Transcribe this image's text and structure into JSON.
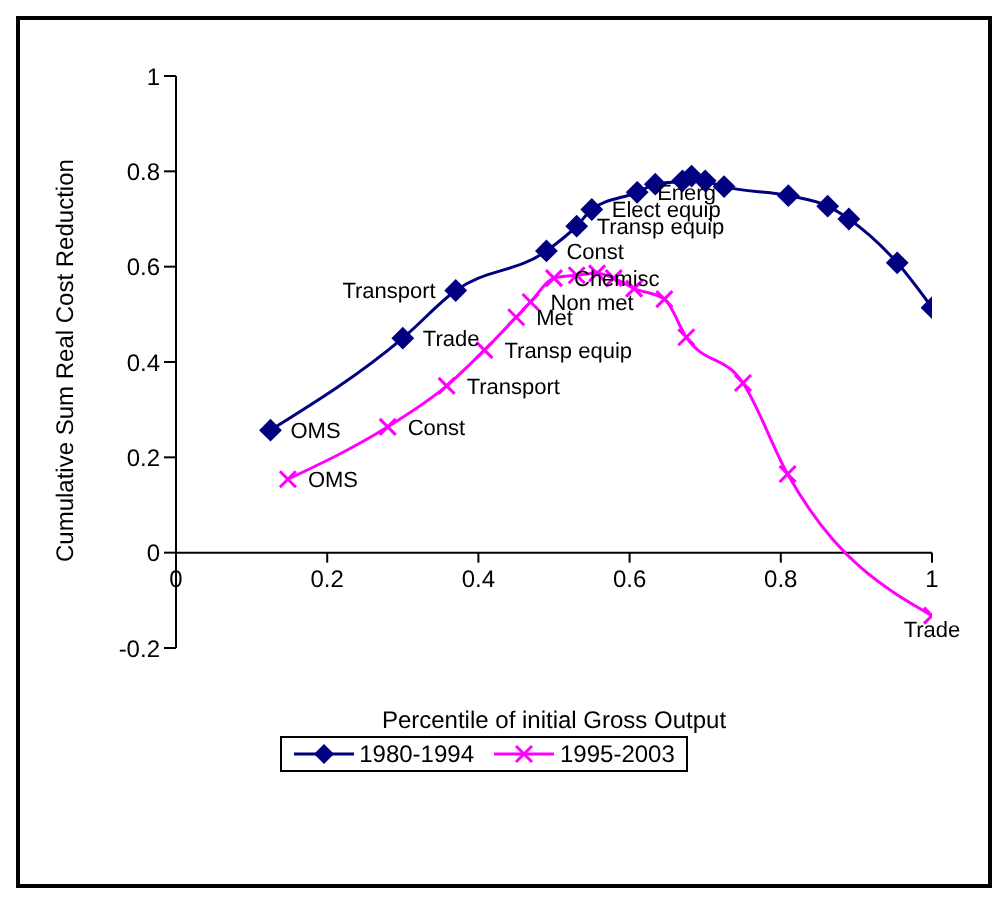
{
  "chart_data": {
    "type": "line",
    "xlabel": "Percentile of initial Gross Output",
    "ylabel": "Cumulative Sum Real Cost Reduction",
    "xlim": [
      0,
      1
    ],
    "xticks": [
      0,
      0.2,
      0.4,
      0.6,
      0.8,
      1
    ],
    "ylim": [
      -0.2,
      1
    ],
    "yticks": [
      -0.2,
      0,
      0.2,
      0.4,
      0.6,
      0.8,
      1
    ],
    "grid": false,
    "legend": "bottom",
    "series": [
      {
        "name": "1980-1994",
        "color": "#000080",
        "marker": "diamond",
        "x": [
          0.125,
          0.3,
          0.37,
          0.49,
          0.53,
          0.55,
          0.61,
          0.634,
          0.67,
          0.682,
          0.7,
          0.725,
          0.81,
          0.862,
          0.89,
          0.954,
          1.0
        ],
        "values": [
          0.257,
          0.45,
          0.55,
          0.633,
          0.685,
          0.72,
          0.756,
          0.773,
          0.78,
          0.79,
          0.78,
          0.768,
          0.749,
          0.727,
          0.7,
          0.608,
          0.514
        ]
      },
      {
        "name": "1995-2003",
        "color": "#ff00ff",
        "marker": "cross",
        "x": [
          0.148,
          0.28,
          0.358,
          0.408,
          0.45,
          0.469,
          0.5,
          0.53,
          0.557,
          0.579,
          0.606,
          0.646,
          0.675,
          0.75,
          0.809,
          1.0
        ],
        "values": [
          0.154,
          0.264,
          0.35,
          0.425,
          0.494,
          0.526,
          0.576,
          0.582,
          0.586,
          0.576,
          0.554,
          0.532,
          0.452,
          0.356,
          0.165,
          -0.132
        ]
      }
    ],
    "annotations": [
      {
        "text": "OMS",
        "x": 0.125,
        "y": 0.257
      },
      {
        "text": "Trade",
        "x": 0.3,
        "y": 0.45
      },
      {
        "text": "Transport",
        "x": 0.37,
        "y": 0.55
      },
      {
        "text": "Const",
        "x": 0.49,
        "y": 0.633
      },
      {
        "text": "Transp equip",
        "x": 0.53,
        "y": 0.685
      },
      {
        "text": "Elect equip",
        "x": 0.55,
        "y": 0.72
      },
      {
        "text": "Energ",
        "x": 0.61,
        "y": 0.756
      },
      {
        "text": "OMS",
        "x": 0.148,
        "y": 0.154
      },
      {
        "text": "Const",
        "x": 0.28,
        "y": 0.264
      },
      {
        "text": "Transport",
        "x": 0.358,
        "y": 0.35
      },
      {
        "text": "Transp equip",
        "x": 0.408,
        "y": 0.425
      },
      {
        "text": "Met",
        "x": 0.45,
        "y": 0.494
      },
      {
        "text": "Non met",
        "x": 0.469,
        "y": 0.526
      },
      {
        "text": "Chemisc",
        "x": 0.5,
        "y": 0.576
      },
      {
        "text": "Trade",
        "x": 1.0,
        "y": -0.132
      }
    ]
  }
}
